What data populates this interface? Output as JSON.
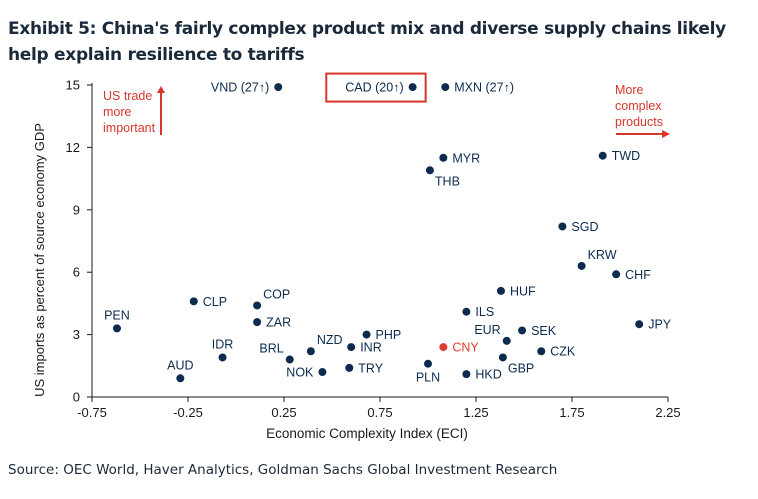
{
  "title": "Exhibit 5: China's fairly complex product mix and diverse supply chains likely help explain resilience to tariffs",
  "source": "Source: OEC World, Haver Analytics, Goldman Sachs Global Investment Research",
  "colors": {
    "point": "#0d2b4e",
    "highlight": "#e03c31",
    "annotation": "#d7362b",
    "axis": "#1a1a1a"
  },
  "chart_data": {
    "type": "scatter",
    "xlabel": "Economic Complexity Index (ECI)",
    "ylabel": "US imports as percent of source economy GDP",
    "xlim": [
      -0.75,
      2.25
    ],
    "ylim": [
      0,
      15
    ],
    "x_ticks": [
      "-0.75",
      "-0.25",
      "0.25",
      "0.75",
      "1.25",
      "1.75",
      "2.25"
    ],
    "x_tick_values": [
      -0.75,
      -0.25,
      0.25,
      0.75,
      1.25,
      1.75,
      2.25
    ],
    "y_ticks": [
      "0",
      "3",
      "6",
      "9",
      "12",
      "15"
    ],
    "y_tick_values": [
      0,
      3,
      6,
      9,
      12,
      15
    ],
    "grid": false,
    "points": [
      {
        "label": "VND (27↑)",
        "x": 0.22,
        "y": 14.9,
        "highlight": false,
        "label_side": "left"
      },
      {
        "label": "CAD (20↑)",
        "x": 0.92,
        "y": 14.9,
        "highlight": false,
        "label_side": "left",
        "boxed": true
      },
      {
        "label": "MXN (27↑)",
        "x": 1.09,
        "y": 14.9,
        "highlight": false,
        "label_side": "right"
      },
      {
        "label": "MYR",
        "x": 1.08,
        "y": 11.5,
        "highlight": false,
        "label_side": "right"
      },
      {
        "label": "THB",
        "x": 1.01,
        "y": 10.9,
        "highlight": false,
        "label_side": "below-right"
      },
      {
        "label": "TWD",
        "x": 1.91,
        "y": 11.6,
        "highlight": false,
        "label_side": "right"
      },
      {
        "label": "SGD",
        "x": 1.7,
        "y": 8.2,
        "highlight": false,
        "label_side": "right"
      },
      {
        "label": "KRW",
        "x": 1.8,
        "y": 6.3,
        "highlight": false,
        "label_side": "above-right"
      },
      {
        "label": "CHF",
        "x": 1.98,
        "y": 5.9,
        "highlight": false,
        "label_side": "right"
      },
      {
        "label": "HUF",
        "x": 1.38,
        "y": 5.1,
        "highlight": false,
        "label_side": "right"
      },
      {
        "label": "JPY",
        "x": 2.1,
        "y": 3.5,
        "highlight": false,
        "label_side": "right"
      },
      {
        "label": "ILS",
        "x": 1.2,
        "y": 4.1,
        "highlight": false,
        "label_side": "right"
      },
      {
        "label": "EUR",
        "x": 1.41,
        "y": 2.7,
        "highlight": false,
        "label_side": "above-left"
      },
      {
        "label": "SEK",
        "x": 1.49,
        "y": 3.2,
        "highlight": false,
        "label_side": "right"
      },
      {
        "label": "CZK",
        "x": 1.59,
        "y": 2.2,
        "highlight": false,
        "label_side": "right"
      },
      {
        "label": "GBP",
        "x": 1.39,
        "y": 1.9,
        "highlight": false,
        "label_side": "below-right"
      },
      {
        "label": "CNY",
        "x": 1.08,
        "y": 2.4,
        "highlight": true,
        "label_side": "right"
      },
      {
        "label": "PLN",
        "x": 1.0,
        "y": 1.6,
        "highlight": false,
        "label_side": "below"
      },
      {
        "label": "HKD",
        "x": 1.2,
        "y": 1.1,
        "highlight": false,
        "label_side": "right"
      },
      {
        "label": "PHP",
        "x": 0.68,
        "y": 3.0,
        "highlight": false,
        "label_side": "right"
      },
      {
        "label": "INR",
        "x": 0.6,
        "y": 2.4,
        "highlight": false,
        "label_side": "right"
      },
      {
        "label": "NZD",
        "x": 0.39,
        "y": 2.2,
        "highlight": false,
        "label_side": "above-right"
      },
      {
        "label": "BRL",
        "x": 0.28,
        "y": 1.8,
        "highlight": false,
        "label_side": "above-left"
      },
      {
        "label": "NOK",
        "x": 0.45,
        "y": 1.2,
        "highlight": false,
        "label_side": "left"
      },
      {
        "label": "TRY",
        "x": 0.59,
        "y": 1.4,
        "highlight": false,
        "label_side": "right"
      },
      {
        "label": "COP",
        "x": 0.11,
        "y": 4.4,
        "highlight": false,
        "label_side": "above-right"
      },
      {
        "label": "ZAR",
        "x": 0.11,
        "y": 3.6,
        "highlight": false,
        "label_side": "right"
      },
      {
        "label": "CLP",
        "x": -0.22,
        "y": 4.6,
        "highlight": false,
        "label_side": "right"
      },
      {
        "label": "IDR",
        "x": -0.07,
        "y": 1.9,
        "highlight": false,
        "label_side": "above"
      },
      {
        "label": "PEN",
        "x": -0.62,
        "y": 3.3,
        "highlight": false,
        "label_side": "above"
      },
      {
        "label": "AUD",
        "x": -0.29,
        "y": 0.9,
        "highlight": false,
        "label_side": "above"
      }
    ],
    "annotations": {
      "left": [
        "US trade",
        "more",
        "important"
      ],
      "right": [
        "More",
        "complex",
        "products"
      ]
    }
  }
}
